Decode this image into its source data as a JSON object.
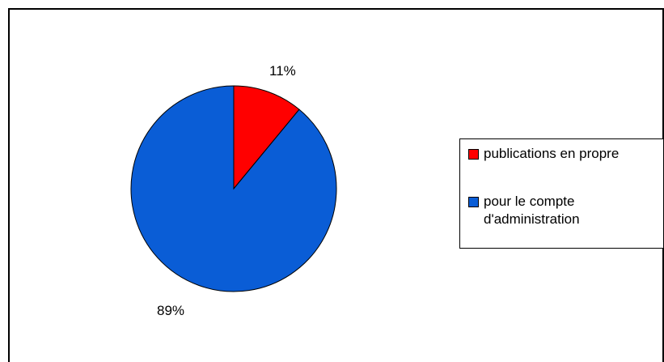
{
  "chart_data": {
    "type": "pie",
    "slices": [
      {
        "name": "publications en propre",
        "value": 11,
        "label": "11%",
        "color": "#ff0000"
      },
      {
        "name": "pour le compte d'administration",
        "value": 89,
        "label": "89%",
        "color": "#0a5dd6"
      }
    ],
    "legend": [
      {
        "text": "publications en propre",
        "color": "#ff0000"
      },
      {
        "text": "pour le compte\nd'administration",
        "color": "#0a5dd6"
      }
    ],
    "legend_position": "right",
    "start_angle": "12 o'clock",
    "direction": "clockwise"
  }
}
